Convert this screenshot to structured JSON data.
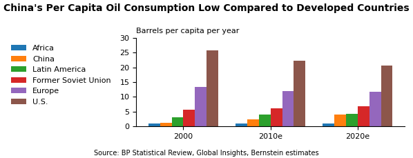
{
  "chart_data": {
    "type": "bar",
    "title": "China's Per Capita Oil Consumption Low Compared to Developed Countries",
    "y_label": "Barrels per capita per year",
    "annotations": [
      "Source: BP Statistical Review, Global Insights, Bernstein estimates"
    ],
    "categories": [
      "2000",
      "2010e",
      "2020e"
    ],
    "series": [
      {
        "name": "Africa",
        "values": [
          1.0,
          1.0,
          1.0
        ]
      },
      {
        "name": "China",
        "values": [
          1.1,
          2.5,
          4.0
        ]
      },
      {
        "name": "Latin America",
        "values": [
          3.1,
          4.1,
          4.2
        ]
      },
      {
        "name": "Former Soviet Union",
        "values": [
          5.7,
          6.2,
          6.8
        ]
      },
      {
        "name": "Europe",
        "values": [
          13.4,
          12.0,
          11.7
        ]
      },
      {
        "name": "U.S.",
        "values": [
          25.7,
          22.3,
          20.7
        ]
      }
    ],
    "ylim": [
      0,
      30
    ],
    "yticks": [
      0,
      5,
      10,
      15,
      20,
      25,
      30
    ],
    "grid": false,
    "legend": "upper left"
  }
}
